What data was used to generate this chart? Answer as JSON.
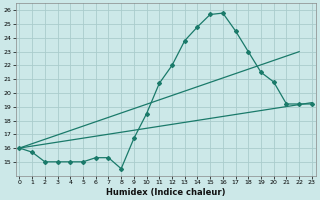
{
  "xlabel": "Humidex (Indice chaleur)",
  "bg_color": "#cce8e8",
  "grid_color": "#aacccc",
  "line_color": "#1a7a6a",
  "line1_x": [
    0,
    1,
    2,
    3,
    4,
    5,
    6,
    7,
    8,
    9,
    10,
    11,
    12,
    13,
    14,
    15,
    16,
    17,
    18,
    19,
    20,
    21,
    22,
    23
  ],
  "line1_y": [
    16.0,
    15.7,
    15.0,
    15.0,
    15.0,
    15.0,
    15.3,
    15.3,
    14.5,
    16.7,
    18.5,
    20.7,
    22.0,
    23.8,
    24.8,
    25.7,
    25.8,
    24.5,
    23.0,
    21.5,
    20.8,
    19.2,
    19.2,
    19.2
  ],
  "line2_x": [
    0,
    22
  ],
  "line2_y": [
    16.0,
    23.0
  ],
  "line3_x": [
    0,
    23
  ],
  "line3_y": [
    16.0,
    19.3
  ],
  "xlim": [
    -0.3,
    23.3
  ],
  "ylim": [
    14.0,
    26.5
  ],
  "yticks": [
    15,
    16,
    17,
    18,
    19,
    20,
    21,
    22,
    23,
    24,
    25,
    26
  ],
  "xticks": [
    0,
    1,
    2,
    3,
    4,
    5,
    6,
    7,
    8,
    9,
    10,
    11,
    12,
    13,
    14,
    15,
    16,
    17,
    18,
    19,
    20,
    21,
    22,
    23
  ]
}
